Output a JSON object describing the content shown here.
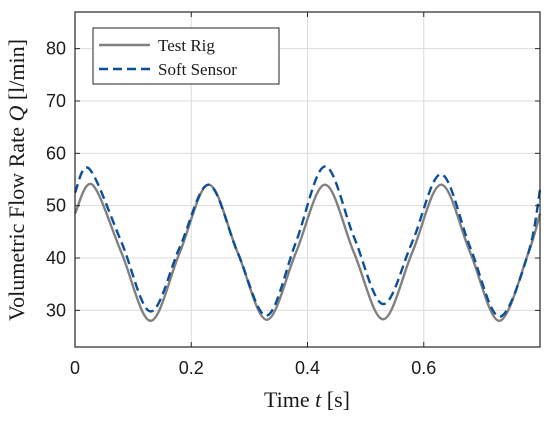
{
  "chart_data": {
    "type": "line",
    "xlabel": {
      "prefix": "Time ",
      "var": "t",
      "suffix": " [s]"
    },
    "ylabel": {
      "prefix": "Volumetric Flow Rate ",
      "var": "Q",
      "suffix": " [l/min]"
    },
    "xlim": [
      0,
      0.8
    ],
    "ylim": [
      23,
      87
    ],
    "xticks": [
      0,
      0.2,
      0.4,
      0.6
    ],
    "xtick_labels": [
      "0",
      "0.2",
      "0.4",
      "0.6"
    ],
    "yticks": [
      30,
      40,
      50,
      60,
      70,
      80
    ],
    "ytick_labels": [
      "30",
      "40",
      "50",
      "60",
      "70",
      "80"
    ],
    "grid": true,
    "legend_position": "top-left",
    "series": [
      {
        "name": "Test Rig",
        "color": "#808080",
        "style": "solid",
        "x": [
          0,
          0.03,
          0.08,
          0.13,
          0.18,
          0.23,
          0.28,
          0.33,
          0.38,
          0.43,
          0.48,
          0.53,
          0.58,
          0.63,
          0.68,
          0.73,
          0.78,
          0.8
        ],
        "y": [
          48.5,
          54,
          41,
          28,
          41,
          54,
          41,
          28.2,
          41,
          54,
          41,
          28.3,
          41,
          54,
          41,
          28,
          41,
          48.5
        ]
      },
      {
        "name": "Soft Sensor",
        "color": "#0b4f9a",
        "style": "dashed",
        "x": [
          0,
          0.025,
          0.08,
          0.13,
          0.18,
          0.23,
          0.28,
          0.33,
          0.38,
          0.43,
          0.48,
          0.53,
          0.58,
          0.63,
          0.68,
          0.73,
          0.78,
          0.8
        ],
        "y": [
          52.5,
          57,
          43,
          29.8,
          42,
          54,
          41,
          29,
          43,
          57.5,
          44,
          31.2,
          43,
          56,
          42,
          28.8,
          41,
          53
        ]
      }
    ]
  }
}
